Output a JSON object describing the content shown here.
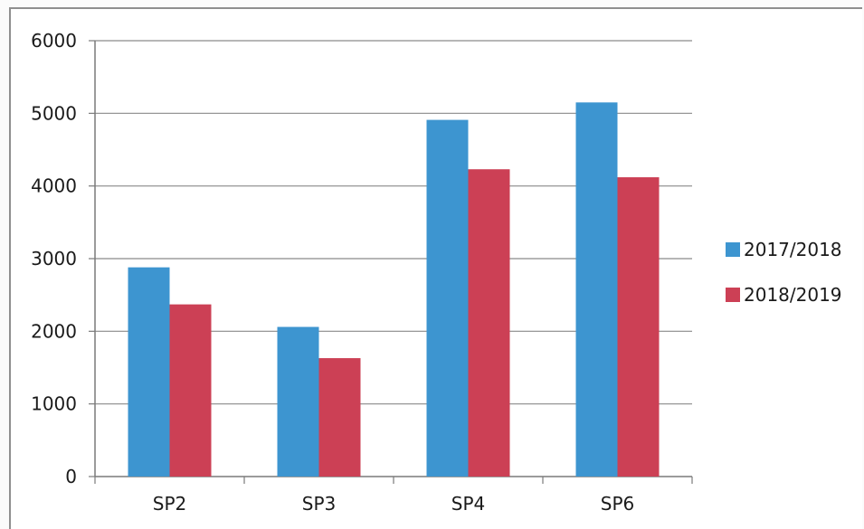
{
  "chart_data": {
    "type": "bar",
    "categories": [
      "SP2",
      "SP3",
      "SP4",
      "SP6"
    ],
    "series": [
      {
        "name": "2017/2018",
        "color": "#3d95d0",
        "values": [
          2880,
          2060,
          4910,
          5150
        ]
      },
      {
        "name": "2018/2019",
        "color": "#cc4055",
        "values": [
          2370,
          1630,
          4230,
          4120
        ]
      }
    ],
    "yticks": [
      "0",
      "1000",
      "2000",
      "3000",
      "4000",
      "5000",
      "6000"
    ],
    "ylim": [
      0,
      6000
    ],
    "grid": true,
    "legend_position": "right"
  }
}
